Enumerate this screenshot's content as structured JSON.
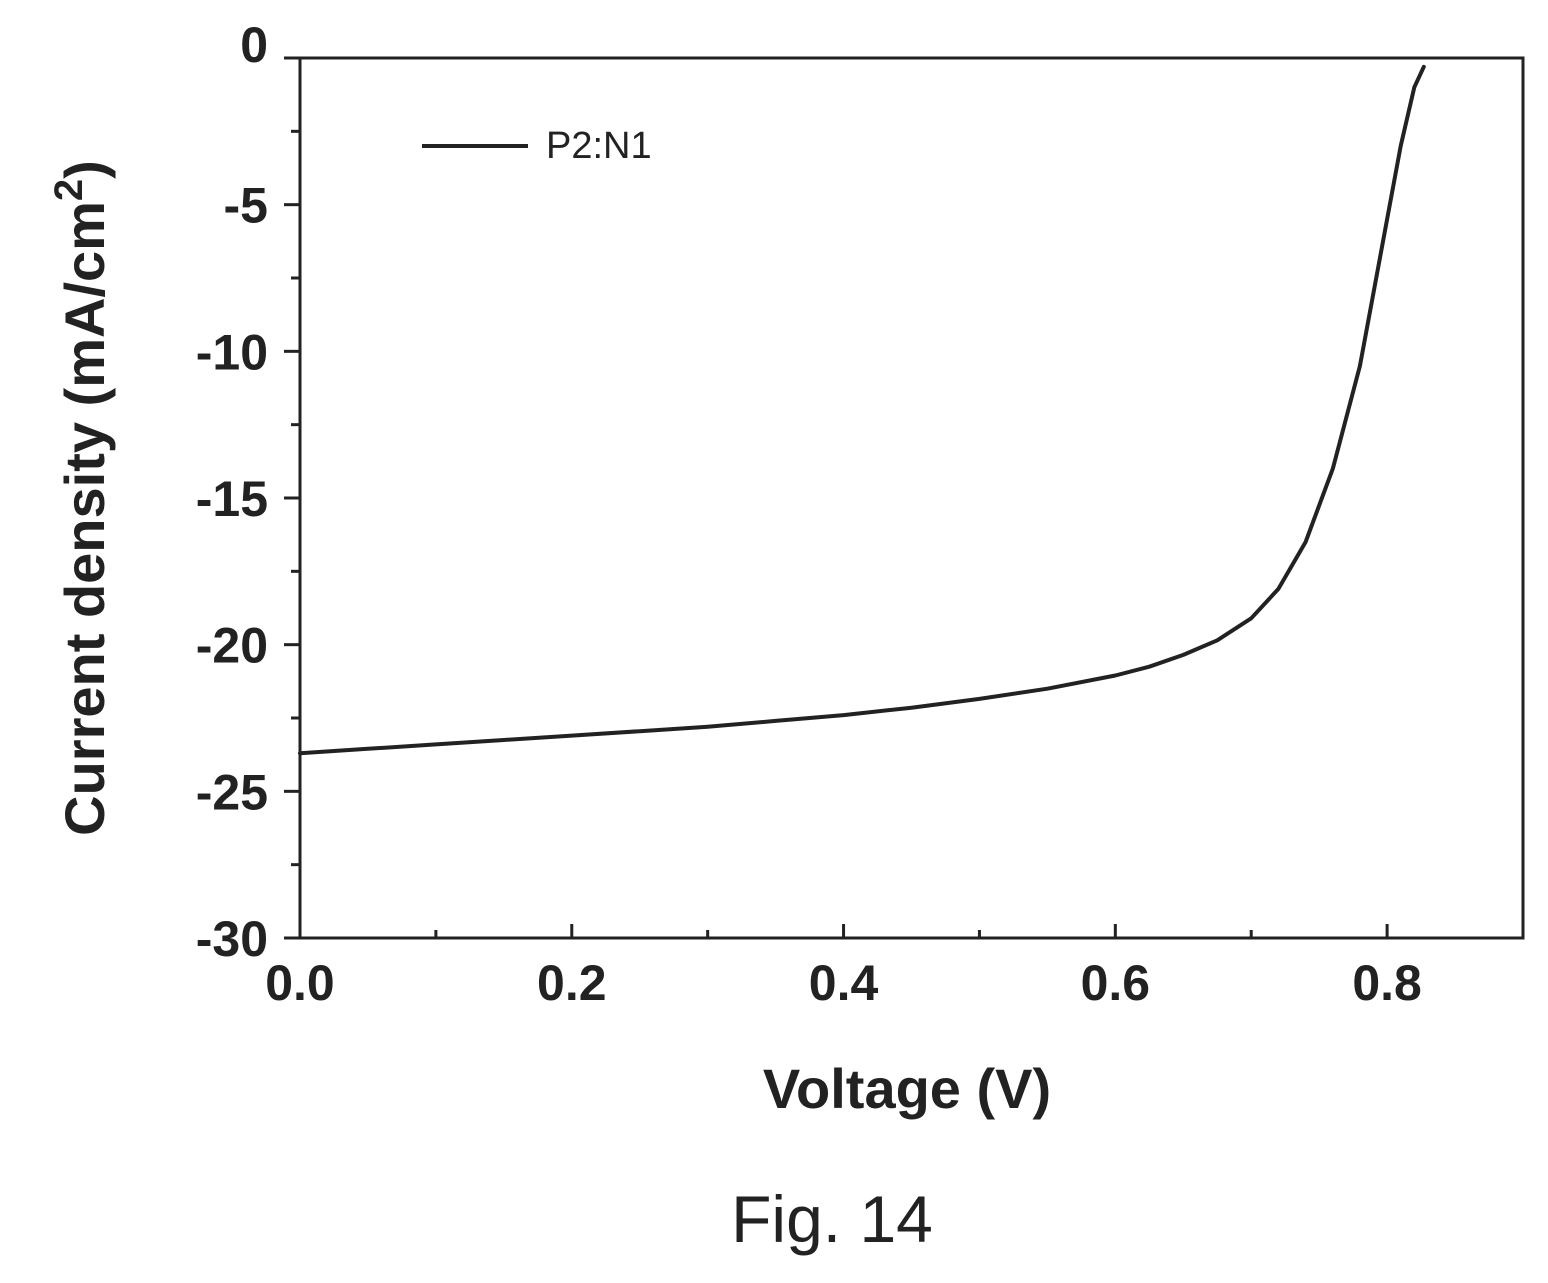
{
  "chart_data": {
    "type": "line",
    "title": "",
    "xlabel": "Voltage (V)",
    "ylabel_main": "Current density (mA/cm",
    "ylabel_sup": "2",
    "ylabel_close": ")",
    "xlim": [
      0.0,
      0.9
    ],
    "ylim": [
      -30,
      0
    ],
    "x_major_ticks": [
      0.0,
      0.2,
      0.4,
      0.6,
      0.8
    ],
    "x_tick_labels": [
      "0.0",
      "0.2",
      "0.4",
      "0.6",
      "0.8"
    ],
    "x_minor_ticks": [
      0.1,
      0.3,
      0.5,
      0.7
    ],
    "y_major_ticks": [
      0,
      -5,
      -10,
      -15,
      -20,
      -25,
      -30
    ],
    "y_tick_labels": [
      "0",
      "-5",
      "-10",
      "-15",
      "-20",
      "-25",
      "-30"
    ],
    "y_minor_ticks": [
      -2.5,
      -7.5,
      -12.5,
      -17.5,
      -22.5,
      -27.5
    ],
    "grid": false,
    "legend_position": "top-left",
    "series": [
      {
        "name": "P2:N1",
        "color": "#222222",
        "x": [
          0.0,
          0.05,
          0.1,
          0.15,
          0.2,
          0.25,
          0.3,
          0.35,
          0.4,
          0.45,
          0.5,
          0.55,
          0.6,
          0.625,
          0.65,
          0.675,
          0.7,
          0.72,
          0.74,
          0.76,
          0.78,
          0.79,
          0.8,
          0.81,
          0.82,
          0.827
        ],
        "y": [
          -23.7,
          -23.55,
          -23.4,
          -23.25,
          -23.1,
          -22.95,
          -22.8,
          -22.6,
          -22.4,
          -22.15,
          -21.85,
          -21.5,
          -21.05,
          -20.75,
          -20.35,
          -19.85,
          -19.1,
          -18.1,
          -16.5,
          -14.0,
          -10.5,
          -8.0,
          -5.5,
          -3.0,
          -1.0,
          -0.3
        ]
      }
    ]
  },
  "caption": "Fig. 14"
}
